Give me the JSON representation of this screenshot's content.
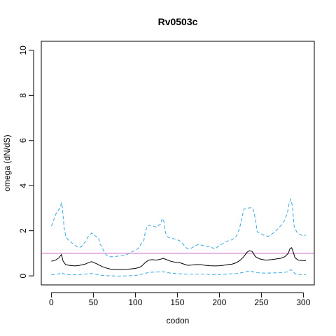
{
  "chart_data": {
    "type": "line",
    "title": "Rv0503c",
    "xlabel": "codon",
    "ylabel": "omega (dN/dS)",
    "xlim": [
      -12,
      313
    ],
    "ylim": [
      -0.4,
      10.4
    ],
    "xticks": [
      0,
      50,
      100,
      150,
      200,
      250,
      300
    ],
    "yticks": [
      0,
      2,
      4,
      6,
      8,
      10
    ],
    "reference_line": {
      "y": 1,
      "color": "#cc66cc"
    },
    "grid": false,
    "series": [
      {
        "style": "dashed",
        "color": "#3ba8e0",
        "points": [
          [
            0,
            2.2
          ],
          [
            3,
            2.5
          ],
          [
            6,
            2.8
          ],
          [
            9,
            2.95
          ],
          [
            11,
            3.1
          ],
          [
            12,
            3.25
          ],
          [
            13,
            3.05
          ],
          [
            15,
            2.2
          ],
          [
            17,
            1.75
          ],
          [
            20,
            1.6
          ],
          [
            25,
            1.45
          ],
          [
            30,
            1.3
          ],
          [
            33,
            1.25
          ],
          [
            36,
            1.3
          ],
          [
            40,
            1.5
          ],
          [
            44,
            1.75
          ],
          [
            48,
            1.9
          ],
          [
            50,
            1.85
          ],
          [
            53,
            1.75
          ],
          [
            56,
            1.7
          ],
          [
            58,
            1.4
          ],
          [
            60,
            1.3
          ],
          [
            63,
            1.05
          ],
          [
            66,
            0.9
          ],
          [
            70,
            0.85
          ],
          [
            75,
            0.85
          ],
          [
            80,
            0.88
          ],
          [
            85,
            0.9
          ],
          [
            90,
            0.95
          ],
          [
            95,
            1.05
          ],
          [
            100,
            1.15
          ],
          [
            103,
            1.2
          ],
          [
            105,
            1.3
          ],
          [
            107,
            1.45
          ],
          [
            110,
            1.55
          ],
          [
            112,
            2.0
          ],
          [
            115,
            2.25
          ],
          [
            118,
            2.22
          ],
          [
            122,
            2.2
          ],
          [
            126,
            2.15
          ],
          [
            128,
            2.25
          ],
          [
            130,
            2.3
          ],
          [
            132,
            2.55
          ],
          [
            134,
            2.4
          ],
          [
            136,
            1.9
          ],
          [
            138,
            1.75
          ],
          [
            140,
            1.7
          ],
          [
            145,
            1.65
          ],
          [
            150,
            1.6
          ],
          [
            153,
            1.55
          ],
          [
            156,
            1.45
          ],
          [
            159,
            1.3
          ],
          [
            162,
            1.2
          ],
          [
            165,
            1.2
          ],
          [
            170,
            1.3
          ],
          [
            175,
            1.4
          ],
          [
            180,
            1.35
          ],
          [
            185,
            1.3
          ],
          [
            190,
            1.3
          ],
          [
            193,
            1.2
          ],
          [
            195,
            1.2
          ],
          [
            200,
            1.35
          ],
          [
            205,
            1.45
          ],
          [
            210,
            1.55
          ],
          [
            215,
            1.6
          ],
          [
            220,
            1.75
          ],
          [
            224,
            2.1
          ],
          [
            227,
            2.6
          ],
          [
            229,
            2.95
          ],
          [
            232,
            3.0
          ],
          [
            238,
            3.02
          ],
          [
            240,
            3.0
          ],
          [
            243,
            2.5
          ],
          [
            245,
            1.95
          ],
          [
            248,
            1.9
          ],
          [
            253,
            1.8
          ],
          [
            258,
            1.75
          ],
          [
            262,
            1.85
          ],
          [
            266,
            1.95
          ],
          [
            270,
            2.1
          ],
          [
            275,
            2.3
          ],
          [
            278,
            2.5
          ],
          [
            281,
            2.8
          ],
          [
            283,
            3.2
          ],
          [
            285,
            3.4
          ],
          [
            287,
            3.1
          ],
          [
            289,
            2.2
          ],
          [
            292,
            1.95
          ],
          [
            295,
            1.85
          ],
          [
            298,
            1.8
          ],
          [
            303,
            1.8
          ]
        ]
      },
      {
        "style": "solid",
        "color": "#000000",
        "points": [
          [
            0,
            0.65
          ],
          [
            5,
            0.7
          ],
          [
            9,
            0.8
          ],
          [
            12,
            0.95
          ],
          [
            14,
            0.65
          ],
          [
            17,
            0.5
          ],
          [
            22,
            0.46
          ],
          [
            28,
            0.44
          ],
          [
            33,
            0.46
          ],
          [
            40,
            0.52
          ],
          [
            45,
            0.6
          ],
          [
            48,
            0.63
          ],
          [
            50,
            0.6
          ],
          [
            55,
            0.52
          ],
          [
            60,
            0.42
          ],
          [
            65,
            0.35
          ],
          [
            70,
            0.3
          ],
          [
            80,
            0.28
          ],
          [
            90,
            0.29
          ],
          [
            100,
            0.33
          ],
          [
            105,
            0.38
          ],
          [
            108,
            0.45
          ],
          [
            112,
            0.6
          ],
          [
            116,
            0.7
          ],
          [
            120,
            0.72
          ],
          [
            125,
            0.7
          ],
          [
            130,
            0.74
          ],
          [
            133,
            0.78
          ],
          [
            137,
            0.72
          ],
          [
            142,
            0.65
          ],
          [
            148,
            0.6
          ],
          [
            153,
            0.58
          ],
          [
            158,
            0.52
          ],
          [
            162,
            0.47
          ],
          [
            167,
            0.48
          ],
          [
            172,
            0.5
          ],
          [
            178,
            0.5
          ],
          [
            183,
            0.47
          ],
          [
            188,
            0.45
          ],
          [
            195,
            0.44
          ],
          [
            200,
            0.45
          ],
          [
            205,
            0.47
          ],
          [
            210,
            0.5
          ],
          [
            215,
            0.52
          ],
          [
            220,
            0.58
          ],
          [
            225,
            0.7
          ],
          [
            229,
            0.85
          ],
          [
            233,
            1.05
          ],
          [
            236,
            1.12
          ],
          [
            239,
            1.08
          ],
          [
            243,
            0.85
          ],
          [
            248,
            0.75
          ],
          [
            255,
            0.7
          ],
          [
            262,
            0.72
          ],
          [
            268,
            0.75
          ],
          [
            273,
            0.78
          ],
          [
            278,
            0.85
          ],
          [
            282,
            1.0
          ],
          [
            284,
            1.2
          ],
          [
            286,
            1.25
          ],
          [
            288,
            1.05
          ],
          [
            290,
            0.8
          ],
          [
            294,
            0.7
          ],
          [
            299,
            0.68
          ],
          [
            303,
            0.68
          ]
        ]
      },
      {
        "style": "dashed",
        "color": "#3ba8e0",
        "points": [
          [
            0,
            0.05
          ],
          [
            5,
            0.07
          ],
          [
            10,
            0.1
          ],
          [
            12,
            0.15
          ],
          [
            14,
            0.1
          ],
          [
            18,
            0.06
          ],
          [
            25,
            0.05
          ],
          [
            35,
            0.06
          ],
          [
            45,
            0.1
          ],
          [
            50,
            0.1
          ],
          [
            55,
            0.06
          ],
          [
            60,
            0.02
          ],
          [
            70,
            0.0
          ],
          [
            80,
            -0.01
          ],
          [
            90,
            0.0
          ],
          [
            100,
            0.02
          ],
          [
            105,
            0.05
          ],
          [
            108,
            0.08
          ],
          [
            112,
            0.12
          ],
          [
            118,
            0.16
          ],
          [
            125,
            0.17
          ],
          [
            132,
            0.18
          ],
          [
            136,
            0.17
          ],
          [
            140,
            0.13
          ],
          [
            150,
            0.1
          ],
          [
            160,
            0.08
          ],
          [
            170,
            0.08
          ],
          [
            180,
            0.08
          ],
          [
            190,
            0.06
          ],
          [
            200,
            0.06
          ],
          [
            210,
            0.08
          ],
          [
            220,
            0.1
          ],
          [
            228,
            0.15
          ],
          [
            233,
            0.2
          ],
          [
            237,
            0.22
          ],
          [
            240,
            0.18
          ],
          [
            245,
            0.14
          ],
          [
            255,
            0.12
          ],
          [
            265,
            0.13
          ],
          [
            275,
            0.15
          ],
          [
            282,
            0.18
          ],
          [
            285,
            0.28
          ],
          [
            287,
            0.22
          ],
          [
            290,
            0.1
          ],
          [
            295,
            0.06
          ],
          [
            303,
            0.05
          ]
        ]
      }
    ]
  }
}
